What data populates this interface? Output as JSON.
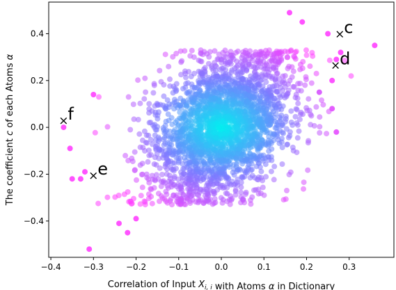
{
  "chart_data": {
    "type": "scatter",
    "title": "",
    "xlabel": "Correlation of Input X_{i,i} with Atoms α in Dictionary",
    "ylabel": "The coefficient c of each Atoms α",
    "xlim": [
      -0.405,
      0.405
    ],
    "ylim": [
      -0.555,
      0.535
    ],
    "xticks": [
      -0.4,
      -0.3,
      -0.2,
      -0.1,
      0.0,
      0.1,
      0.2,
      0.3
    ],
    "yticks": [
      -0.4,
      -0.2,
      0.0,
      0.2,
      0.4
    ],
    "xtick_labels": [
      "−0.4",
      "−0.3",
      "−0.2",
      "−0.1",
      "0.0",
      "0.1",
      "0.2",
      "0.3"
    ],
    "ytick_labels": [
      "−0.4",
      "−0.2",
      "0.0",
      "0.2",
      "0.4"
    ],
    "grid": false,
    "legend": "none",
    "color_scale": {
      "description": "point color by distance from origin",
      "center": "#00f0f0",
      "mid": "#7b7bff",
      "outer": "#ff40ff"
    },
    "cloud": {
      "count": 2600,
      "x_mean": 0.0,
      "x_sd": 0.085,
      "y_mean": 0.0,
      "y_sd": 0.165,
      "correlation": 0.35,
      "y_clip": 0.33,
      "note_alpha": 0.55
    },
    "outliers": [
      {
        "x": 0.16,
        "y": 0.49
      },
      {
        "x": 0.36,
        "y": 0.35
      },
      {
        "x": -0.31,
        "y": -0.52
      },
      {
        "x": 0.19,
        "y": 0.45
      },
      {
        "x": 0.25,
        "y": 0.4
      },
      {
        "x": 0.27,
        "y": 0.29
      },
      {
        "x": 0.28,
        "y": 0.32
      },
      {
        "x": -0.37,
        "y": 0.0
      },
      {
        "x": -0.355,
        "y": -0.09
      },
      {
        "x": -0.35,
        "y": -0.22
      },
      {
        "x": -0.32,
        "y": -0.19
      },
      {
        "x": -0.33,
        "y": -0.22
      },
      {
        "x": -0.24,
        "y": -0.41
      },
      {
        "x": -0.22,
        "y": -0.45
      },
      {
        "x": -0.2,
        "y": -0.39
      },
      {
        "x": 0.26,
        "y": 0.2
      },
      {
        "x": 0.23,
        "y": 0.15
      },
      {
        "x": 0.27,
        "y": -0.02
      },
      {
        "x": 0.26,
        "y": 0.08
      },
      {
        "x": -0.3,
        "y": 0.14
      }
    ],
    "annotations": [
      {
        "label": "c",
        "x": 0.278,
        "y": 0.4
      },
      {
        "label": "d",
        "x": 0.268,
        "y": 0.266
      },
      {
        "label": "f",
        "x": -0.37,
        "y": 0.03
      },
      {
        "label": "e",
        "x": -0.3,
        "y": -0.205
      }
    ]
  }
}
